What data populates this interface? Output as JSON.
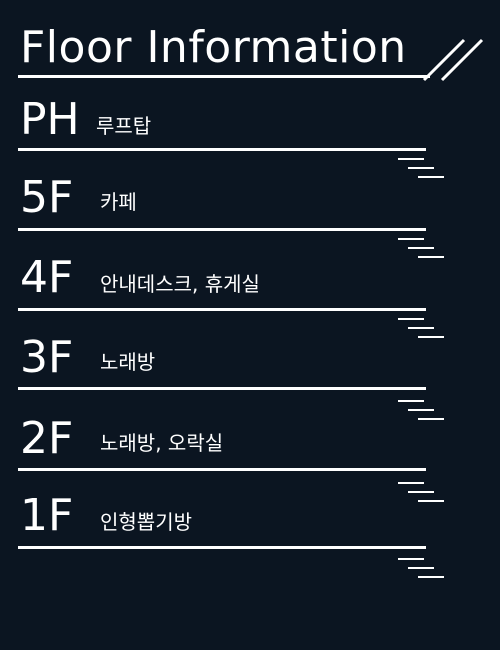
{
  "header": {
    "title": "Floor Information"
  },
  "floors": [
    {
      "code": "PH",
      "description": "루프탑"
    },
    {
      "code": "5F",
      "description": "카페"
    },
    {
      "code": "4F",
      "description": "안내데스크, 휴게실"
    },
    {
      "code": "3F",
      "description": "노래방"
    },
    {
      "code": "2F",
      "description": "노래방, 오락실"
    },
    {
      "code": "1F",
      "description": "인형뽑기방"
    }
  ],
  "colors": {
    "background": "#0b1521",
    "foreground": "#ffffff"
  }
}
